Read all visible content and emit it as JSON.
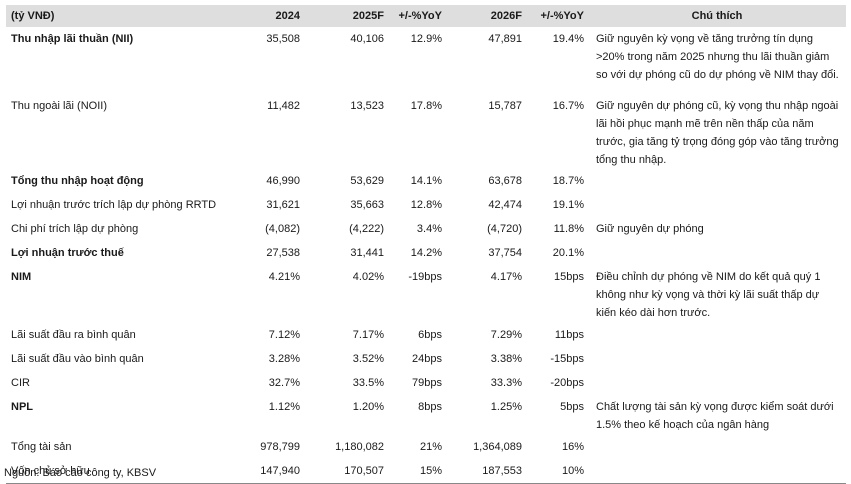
{
  "header": {
    "unit": "(tỷ VNĐ)",
    "y2024": "2024",
    "y2025": "2025F",
    "yoy1": "+/-%YoY",
    "y2026": "2026F",
    "yoy2": "+/-%YoY",
    "note": "Chú thích"
  },
  "rows": [
    {
      "label": "Thu nhập lãi thuần (NII)",
      "bold": true,
      "v2024": "35,508",
      "v2025": "40,106",
      "yoy1": "12.9%",
      "v2026": "47,891",
      "yoy2": "19.4%",
      "note": "Giữ nguyên kỳ vọng về tăng trưởng tín dụng >20% trong năm 2025 nhưng thu lãi thuần giảm so với dự phóng cũ do dự phóng về NIM thay đổi."
    },
    {
      "label": "Thu ngoài lãi (NOII)",
      "bold": false,
      "v2024": "11,482",
      "v2025": "13,523",
      "yoy1": "17.8%",
      "v2026": "15,787",
      "yoy2": "16.7%",
      "note": "Giữ nguyên dự phóng cũ, kỳ vọng thu nhập ngoài lãi hồi phục mạnh mẽ trên nền thấp của năm trước, gia tăng tỷ trọng đóng góp vào tăng trưởng tổng thu nhập."
    },
    {
      "label": "Tổng thu nhập hoạt động",
      "bold": true,
      "v2024": "46,990",
      "v2025": "53,629",
      "yoy1": "14.1%",
      "v2026": "63,678",
      "yoy2": "18.7%",
      "note": ""
    },
    {
      "label": "Lợi nhuận trước trích lập dự phòng RRTD",
      "bold": false,
      "v2024": "31,621",
      "v2025": "35,663",
      "yoy1": "12.8%",
      "v2026": "42,474",
      "yoy2": "19.1%",
      "note": ""
    },
    {
      "label": "Chi phí trích lập dự phòng",
      "bold": false,
      "v2024": "(4,082)",
      "v2025": "(4,222)",
      "yoy1": "3.4%",
      "v2026": "(4,720)",
      "yoy2": "11.8%",
      "note": "Giữ nguyên dự phóng"
    },
    {
      "label": "Lợi nhuận trước thuế",
      "bold": true,
      "v2024": "27,538",
      "v2025": "31,441",
      "yoy1": "14.2%",
      "v2026": "37,754",
      "yoy2": "20.1%",
      "note": ""
    },
    {
      "label": "NIM",
      "bold": true,
      "v2024": "4.21%",
      "v2025": "4.02%",
      "yoy1": "-19bps",
      "v2026": "4.17%",
      "yoy2": "15bps",
      "note": "Điều chỉnh dự phóng về NIM do kết quả quý 1 không như kỳ vọng và thời kỳ lãi suất thấp dự kiến kéo dài hơn trước."
    },
    {
      "label": "Lãi suất đầu ra bình quân",
      "bold": false,
      "v2024": "7.12%",
      "v2025": "7.17%",
      "yoy1": "6bps",
      "v2026": "7.29%",
      "yoy2": "11bps",
      "note": ""
    },
    {
      "label": "Lãi suất đầu vào bình quân",
      "bold": false,
      "v2024": "3.28%",
      "v2025": "3.52%",
      "yoy1": "24bps",
      "v2026": "3.38%",
      "yoy2": "-15bps",
      "note": ""
    },
    {
      "label": "CIR",
      "bold": false,
      "v2024": "32.7%",
      "v2025": "33.5%",
      "yoy1": "79bps",
      "v2026": "33.3%",
      "yoy2": "-20bps",
      "note": ""
    },
    {
      "label": "NPL",
      "bold": true,
      "v2024": "1.12%",
      "v2025": "1.20%",
      "yoy1": "8bps",
      "v2026": "1.25%",
      "yoy2": "5bps",
      "note": "Chất lượng tài sản kỳ vọng được kiểm soát dưới 1.5% theo kế hoạch của ngân hàng"
    },
    {
      "label": "Tổng tài sản",
      "bold": false,
      "v2024": "978,799",
      "v2025": "1,180,082",
      "yoy1": "21%",
      "v2026": "1,364,089",
      "yoy2": "16%",
      "note": ""
    },
    {
      "label": "Vốn chủ sở hữu",
      "bold": false,
      "v2024": "147,940",
      "v2025": "170,507",
      "yoy1": "15%",
      "v2026": "187,553",
      "yoy2": "10%",
      "note": ""
    }
  ],
  "source": "Nguồn: Báo cáo công ty, KBSV"
}
